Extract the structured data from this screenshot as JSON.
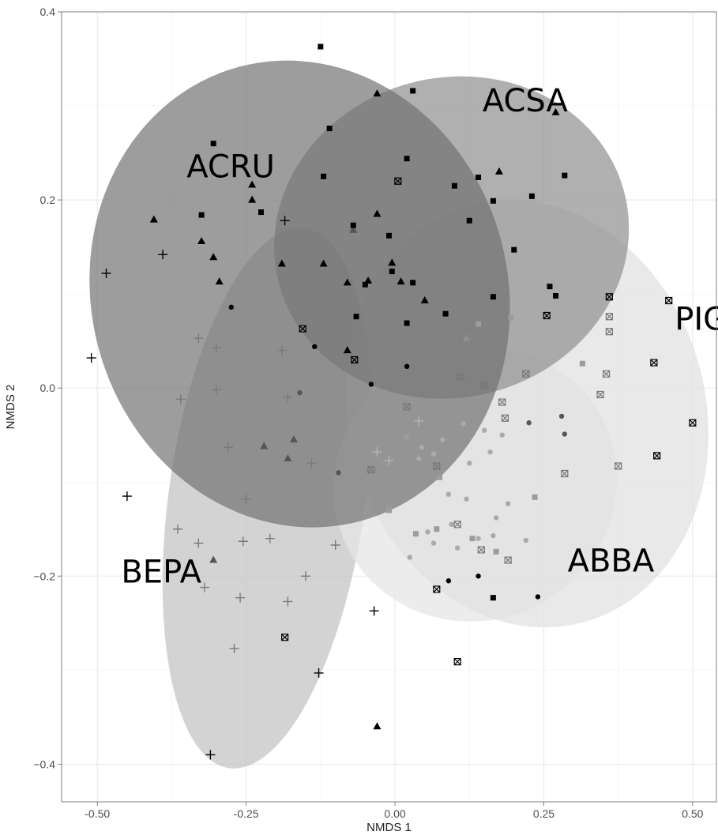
{
  "chart_data": {
    "type": "scatter",
    "title": "",
    "xlabel": "NMDS 1",
    "ylabel": "NMDS 2",
    "xlim": [
      -0.56,
      0.54
    ],
    "ylim": [
      -0.44,
      0.4
    ],
    "x_ticks": [
      -0.5,
      -0.25,
      0.0,
      0.25,
      0.5
    ],
    "x_tick_labels": [
      "-0.50",
      "-0.25",
      "0.00",
      "0.25",
      "0.50"
    ],
    "y_ticks": [
      -0.4,
      -0.2,
      0.0,
      0.2,
      0.4
    ],
    "y_tick_labels": [
      "−0.4",
      "−0.2",
      "0.0",
      "0.2",
      "0.4"
    ],
    "grid": true,
    "ellipses": [
      {
        "label": "BEPA",
        "cx": -0.215,
        "cy": -0.117,
        "rx": 0.165,
        "ry": 0.29,
        "angle": 8,
        "fill": "#c2c2c2",
        "opacity": 0.72,
        "label_x": -0.46,
        "label_y": -0.207
      },
      {
        "label": "ABBA",
        "cx": 0.135,
        "cy": -0.102,
        "rx": 0.24,
        "ry": 0.145,
        "angle": -25,
        "fill": "#e6e6e6",
        "opacity": 0.75,
        "label_x": 0.29,
        "label_y": -0.195
      },
      {
        "label": "PIGL",
        "cx": 0.222,
        "cy": -0.027,
        "rx": 0.3,
        "ry": 0.23,
        "angle": -15,
        "fill": "#e2e2e2",
        "opacity": 0.75,
        "label_x": 0.47,
        "label_y": 0.062
      },
      {
        "label": "ACSA",
        "cx": 0.095,
        "cy": 0.16,
        "rx": 0.3,
        "ry": 0.17,
        "angle": -15,
        "fill": "#8e8e8e",
        "opacity": 0.7,
        "label_x": 0.147,
        "label_y": 0.294
      },
      {
        "label": "ACRU",
        "cx": -0.16,
        "cy": 0.1,
        "rx": 0.35,
        "ry": 0.25,
        "angle": -15,
        "fill": "#6e6e6e",
        "opacity": 0.68,
        "label_x": -0.35,
        "label_y": 0.224
      }
    ],
    "series": [
      {
        "marker": "plus",
        "color": "#000000",
        "points": [
          [
            -0.51,
            0.032
          ],
          [
            -0.485,
            0.122
          ],
          [
            -0.45,
            -0.115
          ],
          [
            -0.39,
            0.142
          ],
          [
            -0.31,
            -0.39
          ],
          [
            -0.185,
            0.178
          ],
          [
            -0.128,
            -0.303
          ],
          [
            -0.035,
            -0.237
          ]
        ]
      },
      {
        "marker": "plus",
        "color": "#7a7a7a",
        "points": [
          [
            -0.33,
            0.053
          ],
          [
            -0.3,
            0.043
          ],
          [
            -0.36,
            -0.012
          ],
          [
            -0.3,
            -0.002
          ],
          [
            -0.19,
            0.04
          ],
          [
            -0.18,
            -0.01
          ],
          [
            -0.28,
            -0.063
          ],
          [
            -0.14,
            -0.08
          ],
          [
            -0.25,
            -0.118
          ],
          [
            -0.365,
            -0.15
          ],
          [
            -0.33,
            -0.165
          ],
          [
            -0.255,
            -0.163
          ],
          [
            -0.21,
            -0.16
          ],
          [
            -0.1,
            -0.167
          ],
          [
            -0.15,
            -0.2
          ],
          [
            -0.32,
            -0.212
          ],
          [
            -0.26,
            -0.223
          ],
          [
            -0.18,
            -0.227
          ],
          [
            -0.27,
            -0.277
          ]
        ]
      },
      {
        "marker": "plus",
        "color": "#b5b5b5",
        "points": [
          [
            0.04,
            -0.035
          ],
          [
            -0.03,
            -0.068
          ],
          [
            -0.01,
            -0.077
          ]
        ]
      },
      {
        "marker": "triangle",
        "color": "#000000",
        "points": [
          [
            -0.405,
            0.179
          ],
          [
            -0.325,
            0.156
          ],
          [
            -0.305,
            0.139
          ],
          [
            -0.295,
            0.113
          ],
          [
            -0.24,
            0.216
          ],
          [
            -0.24,
            0.2
          ],
          [
            -0.19,
            0.132
          ],
          [
            -0.12,
            0.132
          ],
          [
            -0.08,
            0.112
          ],
          [
            -0.08,
            0.04
          ],
          [
            -0.03,
            0.313
          ],
          [
            -0.03,
            0.185
          ],
          [
            -0.045,
            0.114
          ],
          [
            -0.005,
            0.133
          ],
          [
            0.01,
            0.113
          ],
          [
            0.05,
            0.093
          ],
          [
            0.175,
            0.23
          ],
          [
            0.27,
            0.293
          ],
          [
            -0.03,
            -0.36
          ]
        ]
      },
      {
        "marker": "triangle",
        "color": "#555555",
        "points": [
          [
            -0.07,
            0.168
          ],
          [
            -0.22,
            -0.062
          ],
          [
            -0.18,
            -0.075
          ],
          [
            -0.17,
            -0.055
          ],
          [
            -0.305,
            -0.183
          ]
        ]
      },
      {
        "marker": "triangle",
        "color": "#8f8f8f",
        "points": [
          [
            0.12,
            0.053
          ]
        ]
      },
      {
        "marker": "square",
        "color": "#000000",
        "points": [
          [
            -0.125,
            0.363
          ],
          [
            0.03,
            0.316
          ],
          [
            -0.305,
            0.26
          ],
          [
            -0.11,
            0.276
          ],
          [
            -0.325,
            0.184
          ],
          [
            -0.225,
            0.187
          ],
          [
            -0.12,
            0.225
          ],
          [
            0.02,
            0.244
          ],
          [
            -0.07,
            0.173
          ],
          [
            -0.01,
            0.162
          ],
          [
            -0.05,
            0.11
          ],
          [
            -0.005,
            0.124
          ],
          [
            0.03,
            0.112
          ],
          [
            0.1,
            0.215
          ],
          [
            0.14,
            0.224
          ],
          [
            0.165,
            0.199
          ],
          [
            0.125,
            0.178
          ],
          [
            0.2,
            0.147
          ],
          [
            0.23,
            0.204
          ],
          [
            0.285,
            0.226
          ],
          [
            0.165,
            0.097
          ],
          [
            0.26,
            0.108
          ],
          [
            0.27,
            0.098
          ],
          [
            0.085,
            0.079
          ],
          [
            0.02,
            0.069
          ],
          [
            -0.065,
            0.076
          ],
          [
            0.165,
            -0.223
          ]
        ]
      },
      {
        "marker": "square",
        "color": "#9c9c9c",
        "points": [
          [
            0.14,
            0.068
          ],
          [
            0.195,
            0.075
          ],
          [
            0.315,
            0.026
          ],
          [
            0.02,
            -0.052
          ],
          [
            0.075,
            -0.095
          ],
          [
            0.035,
            -0.155
          ],
          [
            0.07,
            -0.15
          ],
          [
            0.13,
            -0.16
          ],
          [
            0.17,
            -0.174
          ],
          [
            -0.01,
            -0.13
          ],
          [
            0.235,
            -0.116
          ]
        ]
      },
      {
        "marker": "xsquare",
        "color": "#000000",
        "points": [
          [
            -0.155,
            0.063
          ],
          [
            -0.068,
            0.03
          ],
          [
            0.005,
            0.22
          ],
          [
            0.255,
            0.077
          ],
          [
            0.36,
            0.097
          ],
          [
            0.46,
            0.093
          ],
          [
            0.435,
            0.027
          ],
          [
            0.5,
            -0.037
          ],
          [
            0.44,
            -0.072
          ],
          [
            0.07,
            -0.214
          ],
          [
            0.105,
            -0.291
          ],
          [
            -0.185,
            -0.265
          ]
        ]
      },
      {
        "marker": "xsquare",
        "color": "#777777",
        "points": [
          [
            0.36,
            0.076
          ],
          [
            0.36,
            0.06
          ],
          [
            0.355,
            0.015
          ],
          [
            0.345,
            -0.007
          ],
          [
            0.375,
            -0.083
          ],
          [
            0.285,
            -0.091
          ],
          [
            0.19,
            -0.183
          ],
          [
            0.11,
            0.012
          ],
          [
            0.15,
            0.003
          ],
          [
            0.18,
            -0.015
          ],
          [
            0.185,
            -0.032
          ],
          [
            0.02,
            -0.02
          ],
          [
            -0.04,
            -0.087
          ],
          [
            0.07,
            -0.083
          ],
          [
            0.105,
            -0.145
          ],
          [
            0.145,
            -0.172
          ],
          [
            0.22,
            0.015
          ]
        ]
      },
      {
        "marker": "circle",
        "color": "#000000",
        "points": [
          [
            -0.275,
            0.086
          ],
          [
            -0.135,
            0.044
          ],
          [
            0.02,
            0.023
          ],
          [
            -0.04,
            0.004
          ],
          [
            0.09,
            -0.205
          ],
          [
            0.14,
            -0.2
          ],
          [
            0.24,
            -0.222
          ]
        ]
      },
      {
        "marker": "circle",
        "color": "#555555",
        "points": [
          [
            -0.095,
            -0.09
          ],
          [
            -0.16,
            -0.005
          ],
          [
            0.225,
            -0.037
          ],
          [
            0.28,
            -0.03
          ],
          [
            0.285,
            -0.049
          ]
        ]
      },
      {
        "marker": "circle",
        "color": "#aaaaaa",
        "points": [
          [
            0.045,
            -0.063
          ],
          [
            0.04,
            -0.075
          ],
          [
            0.065,
            -0.07
          ],
          [
            0.08,
            -0.055
          ],
          [
            0.115,
            -0.038
          ],
          [
            0.15,
            -0.045
          ],
          [
            0.16,
            -0.068
          ],
          [
            0.18,
            -0.05
          ],
          [
            0.125,
            -0.08
          ],
          [
            0.09,
            -0.113
          ],
          [
            0.12,
            -0.118
          ],
          [
            0.19,
            -0.123
          ],
          [
            0.17,
            -0.138
          ],
          [
            0.165,
            -0.157
          ],
          [
            0.14,
            -0.16
          ],
          [
            0.095,
            -0.145
          ],
          [
            0.055,
            -0.153
          ],
          [
            0.22,
            -0.162
          ],
          [
            0.025,
            -0.18
          ],
          [
            0.065,
            -0.165
          ],
          [
            0.105,
            -0.17
          ]
        ]
      }
    ]
  }
}
